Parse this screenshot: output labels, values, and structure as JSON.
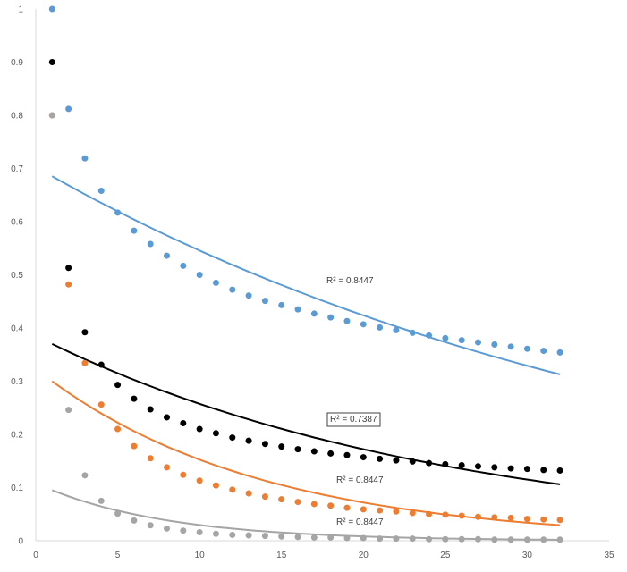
{
  "chart_data": {
    "type": "scatter",
    "title": "",
    "xlabel": "",
    "ylabel": "",
    "xlim": [
      0,
      35
    ],
    "ylim": [
      0,
      1
    ],
    "x_ticks": [
      "0",
      "5",
      "10",
      "15",
      "20",
      "25",
      "30",
      "35"
    ],
    "y_ticks": [
      "0",
      "0.1",
      "0.2",
      "0.3",
      "0.4",
      "0.5",
      "0.6",
      "0.7",
      "0.8",
      "0.9",
      "1"
    ],
    "grid": false,
    "legend": "none",
    "x": [
      1,
      2,
      3,
      4,
      5,
      6,
      7,
      8,
      9,
      10,
      11,
      12,
      13,
      14,
      15,
      16,
      17,
      18,
      19,
      20,
      21,
      22,
      23,
      24,
      25,
      26,
      27,
      28,
      29,
      30,
      31,
      32
    ],
    "series": [
      {
        "color": "#5b9bd5",
        "values": [
          1.0,
          0.812,
          0.719,
          0.658,
          0.617,
          0.583,
          0.558,
          0.536,
          0.517,
          0.5,
          0.485,
          0.472,
          0.461,
          0.451,
          0.443,
          0.435,
          0.427,
          0.42,
          0.413,
          0.407,
          0.401,
          0.396,
          0.391,
          0.386,
          0.381,
          0.377,
          0.373,
          0.369,
          0.365,
          0.361,
          0.357,
          0.354
        ],
        "trendline": {
          "type": "exponential",
          "a": 0.7028,
          "b": -0.0253,
          "r2_label": "R² = 0.8447"
        }
      },
      {
        "color": "#000000",
        "values": [
          0.9,
          0.513,
          0.392,
          0.331,
          0.293,
          0.267,
          0.247,
          0.232,
          0.221,
          0.21,
          0.202,
          0.194,
          0.188,
          0.182,
          0.177,
          0.172,
          0.168,
          0.164,
          0.161,
          0.157,
          0.154,
          0.151,
          0.149,
          0.146,
          0.144,
          0.142,
          0.14,
          0.138,
          0.136,
          0.135,
          0.133,
          0.132
        ],
        "trendline": {
          "type": "exponential",
          "a": 0.3852,
          "b": -0.0403,
          "r2_label": "R² = 0.7387",
          "label_boxed": true
        }
      },
      {
        "color": "#ed7d31",
        "values": [
          0.8,
          0.482,
          0.334,
          0.256,
          0.21,
          0.178,
          0.155,
          0.138,
          0.124,
          0.113,
          0.104,
          0.096,
          0.089,
          0.083,
          0.078,
          0.073,
          0.069,
          0.066,
          0.062,
          0.059,
          0.057,
          0.055,
          0.052,
          0.05,
          0.049,
          0.047,
          0.045,
          0.044,
          0.043,
          0.041,
          0.04,
          0.039
        ],
        "trendline": {
          "type": "exponential",
          "a": 0.3232,
          "b": -0.0751,
          "r2_label": "R² = 0.8447"
        }
      },
      {
        "color": "#a5a5a5",
        "values": [
          0.8,
          0.246,
          0.123,
          0.075,
          0.051,
          0.038,
          0.029,
          0.023,
          0.019,
          0.016,
          0.013,
          0.011,
          0.01,
          0.009,
          0.008,
          0.007,
          0.006,
          0.006,
          0.005,
          0.005,
          0.004,
          0.004,
          0.004,
          0.003,
          0.003,
          0.003,
          0.003,
          0.002,
          0.002,
          0.002,
          0.002,
          0.002
        ],
        "trendline": {
          "type": "exponential",
          "a": 0.1082,
          "b": -0.1296,
          "r2_label": "R² = 0.8447"
        }
      }
    ]
  }
}
